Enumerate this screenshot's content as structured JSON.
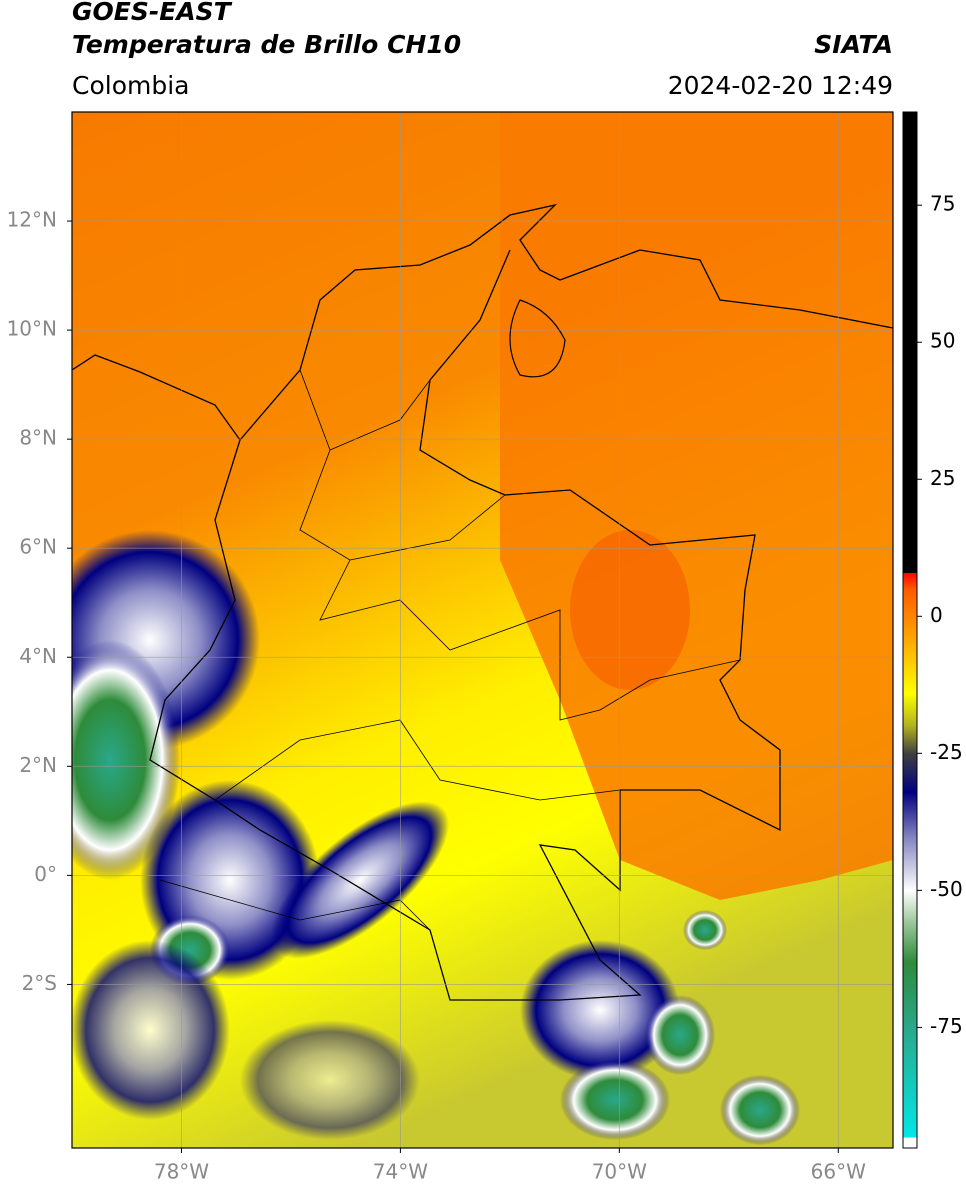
{
  "header": {
    "title": "GOES-EAST",
    "subtitle": "Temperatura de Brillo CH10",
    "source": "SIATA",
    "region": "Colombia",
    "timestamp": "2024-02-20 12:49"
  },
  "map": {
    "xlim": [
      -80,
      -65
    ],
    "ylim": [
      -5,
      14
    ],
    "xticks": [
      {
        "value": -78,
        "label": "78°W"
      },
      {
        "value": -74,
        "label": "74°W"
      },
      {
        "value": -70,
        "label": "70°W"
      },
      {
        "value": -66,
        "label": "66°W"
      }
    ],
    "yticks": [
      {
        "value": 12,
        "label": "12°N"
      },
      {
        "value": 10,
        "label": "10°N"
      },
      {
        "value": 8,
        "label": "8°N"
      },
      {
        "value": 6,
        "label": "6°N"
      },
      {
        "value": 4,
        "label": "4°N"
      },
      {
        "value": 2,
        "label": "2°N"
      },
      {
        "value": 0,
        "label": "0°"
      },
      {
        "value": -2,
        "label": "2°S"
      }
    ],
    "grid": true
  },
  "colorbar": {
    "lim": [
      -97,
      92
    ],
    "ticks": [
      75,
      50,
      25,
      0,
      -25,
      -50,
      -75
    ],
    "stops": [
      {
        "value": -97,
        "color": "#ffffff"
      },
      {
        "value": -95,
        "color": "#ffffff"
      },
      {
        "value": -95,
        "color": "#00e8e8"
      },
      {
        "value": -75,
        "color": "#2aa88a"
      },
      {
        "value": -63,
        "color": "#2e8b3a"
      },
      {
        "value": -55,
        "color": "#a8cfa8"
      },
      {
        "value": -50,
        "color": "#ffffff"
      },
      {
        "value": -40,
        "color": "#8080c0"
      },
      {
        "value": -32,
        "color": "#000080"
      },
      {
        "value": -25,
        "color": "#404040"
      },
      {
        "value": -20,
        "color": "#b0b020"
      },
      {
        "value": -14,
        "color": "#ffff00"
      },
      {
        "value": -4,
        "color": "#ffa500"
      },
      {
        "value": 5,
        "color": "#ff5a00"
      },
      {
        "value": 8,
        "color": "#ff0000"
      },
      {
        "value": 8,
        "color": "#000000"
      },
      {
        "value": 92,
        "color": "#000000"
      }
    ]
  }
}
